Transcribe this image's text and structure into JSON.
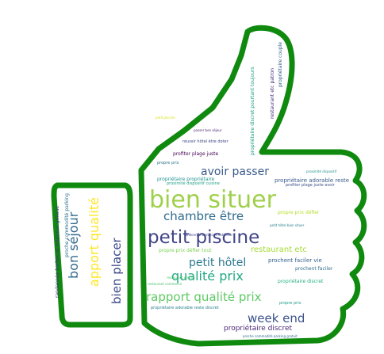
{
  "wordcloud": {
    "outline_color": "#0f8a0f",
    "words": [
      {
        "text": "bien situer",
        "color": "#9fd04a"
      },
      {
        "text": "petit piscine",
        "color": "#414487"
      },
      {
        "text": "chambre être",
        "color": "#2f6c8e"
      },
      {
        "text": "avoir passer",
        "color": "#3b5c8c"
      },
      {
        "text": "restaurant etc",
        "color": "#a6db35"
      },
      {
        "text": "petit hôtel",
        "color": "#2a788e"
      },
      {
        "text": "qualité prix",
        "color": "#22a884"
      },
      {
        "text": "rapport qualité prix",
        "color": "#5ec962"
      },
      {
        "text": "week end",
        "color": "#3b528b"
      },
      {
        "text": "propriétaire discret",
        "color": "#482878"
      },
      {
        "text": "bon séjour",
        "color": "#31688e"
      },
      {
        "text": "apport qualité",
        "color": "#fde725"
      },
      {
        "text": "bien placer",
        "color": "#3e4a89"
      },
      {
        "text": "prochent faciler vie",
        "color": "#355f8d"
      },
      {
        "text": "propre prix défier tout",
        "color": "#7ad151"
      },
      {
        "text": "propriétaire adorable reste discret",
        "color": "#26828e"
      },
      {
        "text": "propriétaire adorable reste",
        "color": "#38598c"
      },
      {
        "text": "propriétaire propriétaire",
        "color": "#21918c"
      },
      {
        "text": "profiter plage juste",
        "color": "#440154"
      },
      {
        "text": "propre prix",
        "color": "#2c728e"
      },
      {
        "text": "propriétaire discret pourtant toujours",
        "color": "#1f9e89"
      },
      {
        "text": "restaurant etc patron",
        "color": "#472d7b"
      },
      {
        "text": "randonnée barbecue extérieur grillade",
        "color": "#463480"
      },
      {
        "text": "proche commodité parking",
        "color": "#2d708e"
      },
      {
        "text": "réussir hôtel être doter",
        "color": "#3f4788"
      },
      {
        "text": "proximité dispositif cuisine",
        "color": "#1fa187"
      },
      {
        "text": "prochent faciler",
        "color": "#2f6b8e"
      },
      {
        "text": "restaurant commerce",
        "color": "#4ac16d"
      },
      {
        "text": "propriétaire discret",
        "color": "#29af7f"
      },
      {
        "text": "profiter plage juste avoir",
        "color": "#3c4f8a"
      },
      {
        "text": "propre prix défier",
        "color": "#b5de2b"
      },
      {
        "text": "petit hôtel bien situer",
        "color": "#287d8e"
      },
      {
        "text": "randonnée barbecue extérieur",
        "color": "#404588"
      },
      {
        "text": "passer bon séjour",
        "color": "#481f70"
      },
      {
        "text": "proximité dispositif",
        "color": "#20928c"
      },
      {
        "text": "propriétaire couple",
        "color": "#33638d"
      },
      {
        "text": "restaurant proche",
        "color": "#52c569"
      },
      {
        "text": "proche commodité parking gratuit",
        "color": "#2e6e8e"
      },
      {
        "text": "petit piscine",
        "color": "#d8e219"
      },
      {
        "text": "propre prix",
        "color": "#1e9b8a"
      }
    ]
  }
}
